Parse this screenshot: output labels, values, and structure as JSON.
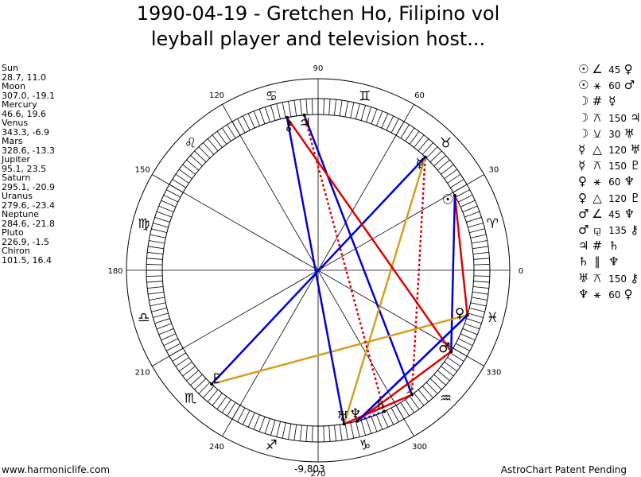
{
  "title": {
    "line1": "1990-04-19 - Gretchen Ho, Filipino vol",
    "line2": "leyball player and television host..."
  },
  "planets": [
    {
      "name": "Sun",
      "coords": "28.7, 11.0"
    },
    {
      "name": "Moon",
      "coords": "307.0, -19.1"
    },
    {
      "name": "Mercury",
      "coords": "46.6, 19.6"
    },
    {
      "name": "Venus",
      "coords": "343.3, -6.9"
    },
    {
      "name": "Mars",
      "coords": "328.6, -13.3"
    },
    {
      "name": "Jupiter",
      "coords": "95.1, 23.5"
    },
    {
      "name": "Saturn",
      "coords": "295.1, -20.9"
    },
    {
      "name": "Uranus",
      "coords": "279.6, -23.4"
    },
    {
      "name": "Neptune",
      "coords": "284.6, -21.8"
    },
    {
      "name": "Pluto",
      "coords": "226.9, -1.5"
    },
    {
      "name": "Chiron",
      "coords": "101.5, 16.4"
    }
  ],
  "aspects": [
    {
      "p1": "☉",
      "kind": "∠",
      "angle": "45",
      "p2": "♀"
    },
    {
      "p1": "☉",
      "kind": "⚹",
      "angle": "60",
      "p2": "♂"
    },
    {
      "p1": "☽",
      "kind": "#",
      "angle": "",
      "p2": "☿"
    },
    {
      "p1": "☽",
      "kind": "⚻",
      "angle": "150",
      "p2": "♃"
    },
    {
      "p1": "☽",
      "kind": "⚺",
      "angle": "30",
      "p2": "♅"
    },
    {
      "p1": "☿",
      "kind": "△",
      "angle": "120",
      "p2": "♅"
    },
    {
      "p1": "☿",
      "kind": "⚻",
      "angle": "150",
      "p2": "♇"
    },
    {
      "p1": "♀",
      "kind": "⚹",
      "angle": "60",
      "p2": "♆"
    },
    {
      "p1": "♀",
      "kind": "△",
      "angle": "120",
      "p2": "♇"
    },
    {
      "p1": "♂",
      "kind": "∠",
      "angle": "45",
      "p2": "♆"
    },
    {
      "p1": "♂",
      "kind": "⚼",
      "angle": "135",
      "p2": "⚷"
    },
    {
      "p1": "♃",
      "kind": "#",
      "angle": "",
      "p2": "♄"
    },
    {
      "p1": "♄",
      "kind": "∥",
      "angle": "",
      "p2": "♆"
    },
    {
      "p1": "♅",
      "kind": "⚻",
      "angle": "150",
      "p2": "⚷"
    },
    {
      "p1": "♆",
      "kind": "⚹",
      "angle": "60",
      "p2": "♀"
    }
  ],
  "wheel": {
    "degree_labels": [
      "0",
      "30",
      "60",
      "90",
      "120",
      "150",
      "180",
      "210",
      "240",
      "270",
      "300",
      "330"
    ],
    "zodiac_glyphs": [
      "♈",
      "♉",
      "♊",
      "♋",
      "♌",
      "♍",
      "♎",
      "♏",
      "♐",
      "♑",
      "♒",
      "♓"
    ],
    "bodies": [
      {
        "glyph": "☉",
        "lon": 28.7
      },
      {
        "glyph": "☽",
        "lon": 307.0
      },
      {
        "glyph": "☿",
        "lon": 46.6
      },
      {
        "glyph": "♀",
        "lon": 343.3
      },
      {
        "glyph": "♂",
        "lon": 328.6
      },
      {
        "glyph": "♃",
        "lon": 95.1
      },
      {
        "glyph": "♄",
        "lon": 295.1
      },
      {
        "glyph": "♅",
        "lon": 279.6
      },
      {
        "glyph": "♆",
        "lon": 284.6
      },
      {
        "glyph": "♇",
        "lon": 226.9
      },
      {
        "glyph": "⚷",
        "lon": 101.5
      }
    ],
    "colors": {
      "red": "#e00000",
      "blue": "#0000dd",
      "gold": "#d4a020"
    }
  },
  "footer": {
    "left": "www.harmoniclife.com",
    "right": "AstroChart Patent Pending",
    "bottom_value": "-9,803"
  }
}
